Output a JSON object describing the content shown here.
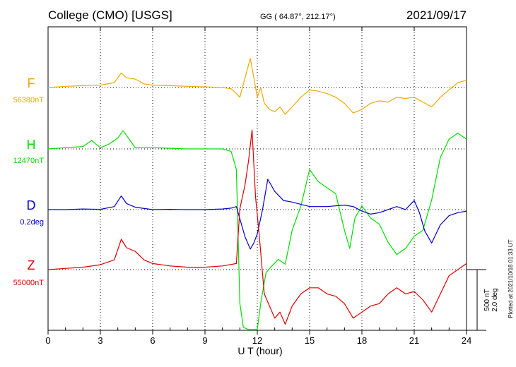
{
  "header": {
    "station": "College (CMO)  [USGS]",
    "coords": "GG ( 64.87°, 212.17°)",
    "date": "2021/09/17"
  },
  "side_note": "Plotted at 2021/10/18 01:33 UT",
  "scale_bar": {
    "nt_label": "500 nT",
    "deg_label": "2.0 deg"
  },
  "colors": {
    "F": "#f2a900",
    "H": "#00e000",
    "D": "#0000cc",
    "Z": "#dd0000"
  },
  "chart_data": {
    "type": "line",
    "xlabel": "U T (hour)",
    "xlim": [
      0,
      24
    ],
    "xticks": [
      0,
      3,
      6,
      9,
      12,
      15,
      18,
      21,
      24
    ],
    "grid": true,
    "series": [
      {
        "name": "F",
        "baseline_label": "56380nT",
        "color": "#f2a900",
        "baseline_value": 56380,
        "unit": "nT",
        "x": [
          0,
          1,
          2,
          3,
          3.8,
          4.2,
          4.5,
          5.0,
          5.5,
          6,
          7,
          8,
          9,
          10,
          10.5,
          10.8,
          11.0,
          11.3,
          11.6,
          11.8,
          12.0,
          12.2,
          12.4,
          12.7,
          13.0,
          13.3,
          13.6,
          14.0,
          14.5,
          15.0,
          15.5,
          16.0,
          16.5,
          17.0,
          17.5,
          18.0,
          18.5,
          19.0,
          19.5,
          20.0,
          20.5,
          21.0,
          21.5,
          22.0,
          22.5,
          23.0,
          23.5,
          24.0
        ],
        "values": [
          56380,
          56390,
          56395,
          56400,
          56420,
          56500,
          56460,
          56450,
          56410,
          56400,
          56395,
          56390,
          56385,
          56380,
          56370,
          56330,
          56300,
          56460,
          56620,
          56460,
          56300,
          56380,
          56250,
          56200,
          56180,
          56220,
          56160,
          56220,
          56300,
          56360,
          56350,
          56330,
          56300,
          56250,
          56170,
          56200,
          56250,
          56270,
          56260,
          56300,
          56290,
          56300,
          56260,
          56220,
          56300,
          56360,
          56420,
          56440
        ]
      },
      {
        "name": "H",
        "baseline_label": "12470nT",
        "color": "#00e000",
        "baseline_value": 12470,
        "unit": "nT",
        "x": [
          0,
          1,
          2,
          2.5,
          3,
          3.5,
          4.0,
          4.3,
          4.6,
          5.0,
          6,
          7,
          8,
          9,
          10.0,
          10.5,
          10.8,
          11.0,
          11.2,
          11.5,
          11.8,
          12.0,
          12.2,
          12.5,
          12.8,
          13.2,
          13.6,
          14.0,
          14.5,
          15.0,
          15.5,
          16.0,
          16.5,
          17.0,
          17.3,
          17.6,
          18.0,
          18.5,
          19.0,
          19.5,
          20.0,
          20.5,
          21.0,
          21.5,
          22.0,
          22.5,
          23.0,
          23.5,
          24.0
        ],
        "values": [
          12470,
          12480,
          12490,
          12540,
          12480,
          12510,
          12560,
          12620,
          12560,
          12480,
          12480,
          12475,
          12470,
          12470,
          12470,
          12450,
          12300,
          11200,
          11000,
          10900,
          10850,
          10700,
          11200,
          11450,
          11500,
          11560,
          11520,
          11800,
          12000,
          12300,
          12200,
          12150,
          12100,
          11800,
          11650,
          11900,
          12000,
          11900,
          11850,
          11700,
          11600,
          11650,
          11750,
          11800,
          12050,
          12400,
          12550,
          12600,
          12550
        ]
      },
      {
        "name": "D",
        "baseline_label": "0.2deg",
        "color": "#0000cc",
        "baseline_value": 0.2,
        "unit": "deg",
        "x": [
          0,
          1,
          2,
          3,
          3.8,
          4.2,
          4.5,
          5.0,
          6,
          7,
          8,
          9,
          10,
          10.5,
          10.8,
          11.0,
          11.3,
          11.6,
          11.8,
          12.0,
          12.3,
          12.6,
          13.0,
          13.5,
          14.0,
          15.0,
          16.0,
          17.0,
          17.5,
          18.0,
          18.5,
          19.0,
          19.5,
          20.0,
          20.5,
          21.0,
          21.3,
          21.6,
          22.0,
          22.5,
          23.0,
          23.5,
          24.0
        ],
        "values": [
          0.2,
          0.2,
          0.22,
          0.21,
          0.3,
          0.65,
          0.4,
          0.28,
          0.2,
          0.21,
          0.2,
          0.2,
          0.22,
          0.25,
          0.3,
          -0.1,
          -0.7,
          -1.1,
          -0.9,
          -0.6,
          0.2,
          1.2,
          0.8,
          0.5,
          0.45,
          0.3,
          0.3,
          0.35,
          0.3,
          0.15,
          0.05,
          0.1,
          0.2,
          0.3,
          0.2,
          0.5,
          0.1,
          -0.5,
          -0.9,
          -0.3,
          0.0,
          0.1,
          0.15
        ]
      },
      {
        "name": "Z",
        "baseline_label": "55000nT",
        "color": "#dd0000",
        "baseline_value": 55000,
        "unit": "nT",
        "x": [
          0,
          1,
          2,
          3,
          3.8,
          4.2,
          4.5,
          5.0,
          5.5,
          6,
          7,
          8,
          9,
          10,
          10.8,
          11.0,
          11.3,
          11.5,
          11.7,
          11.9,
          12.1,
          12.4,
          12.7,
          13.0,
          13.3,
          13.6,
          14.0,
          14.5,
          15.0,
          15.5,
          16.0,
          16.5,
          17.0,
          17.5,
          18.0,
          18.5,
          19.0,
          19.5,
          20.0,
          20.5,
          21.0,
          21.5,
          22.0,
          22.5,
          23.0,
          23.5,
          24.0
        ],
        "values": [
          55000,
          55010,
          55020,
          55040,
          55080,
          55250,
          55180,
          55150,
          55080,
          55050,
          55030,
          55020,
          55020,
          55030,
          55050,
          55500,
          55700,
          55900,
          56150,
          55600,
          55300,
          54800,
          54700,
          54600,
          54650,
          54550,
          54700,
          54800,
          54850,
          54850,
          54800,
          54780,
          54720,
          54600,
          54650,
          54700,
          54720,
          54800,
          54850,
          54800,
          54820,
          54750,
          54650,
          54800,
          54950,
          55000,
          55050
        ]
      }
    ]
  }
}
